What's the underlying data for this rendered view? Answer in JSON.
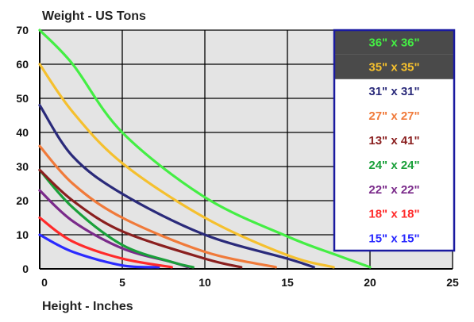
{
  "chart_data": {
    "type": "line",
    "title": "Weight - US Tons",
    "xlabel": "Height - Inches",
    "ylabel": "Weight - US Tons",
    "xlim": [
      0,
      25
    ],
    "ylim": [
      0,
      70
    ],
    "xticks": [
      "0",
      "5",
      "10",
      "15",
      "20",
      "25"
    ],
    "yticks": [
      "0",
      "10",
      "20",
      "30",
      "40",
      "50",
      "60",
      "70"
    ],
    "grid": true,
    "background": "#e4e4e4",
    "legend_position": "top-right",
    "series": [
      {
        "name": "36\" x 36\"",
        "color": "#44ee44",
        "legend_bg": "#4a4a4a",
        "points": [
          [
            0,
            70
          ],
          [
            2,
            60
          ],
          [
            5,
            40
          ],
          [
            10,
            21
          ],
          [
            15,
            9.5
          ],
          [
            18,
            4
          ],
          [
            20,
            0.5
          ]
        ]
      },
      {
        "name": "35\" x 35\"",
        "color": "#f5c02e",
        "legend_bg": "#4a4a4a",
        "points": [
          [
            0,
            60
          ],
          [
            2,
            46
          ],
          [
            5,
            31
          ],
          [
            10,
            15
          ],
          [
            15,
            4
          ],
          [
            17.8,
            0.5
          ]
        ]
      },
      {
        "name": "31\" x 31\"",
        "color": "#2a2a7a",
        "legend_bg": "#ffffff",
        "points": [
          [
            0,
            48
          ],
          [
            2,
            33
          ],
          [
            5,
            22
          ],
          [
            10,
            10
          ],
          [
            15,
            3
          ],
          [
            16.6,
            0.5
          ]
        ]
      },
      {
        "name": "27\" x 27\"",
        "color": "#f07a3a",
        "legend_bg": "#ffffff",
        "points": [
          [
            0,
            36
          ],
          [
            2,
            25
          ],
          [
            5,
            15
          ],
          [
            10,
            5
          ],
          [
            14.3,
            0.5
          ]
        ]
      },
      {
        "name": "13\" x 41\"",
        "color": "#8a1f1f",
        "legend_bg": "#ffffff",
        "points": [
          [
            0,
            29
          ],
          [
            2,
            20
          ],
          [
            5,
            11
          ],
          [
            10,
            3
          ],
          [
            12.2,
            0.5
          ]
        ]
      },
      {
        "name": "24\" x 24\"",
        "color": "#1aa03a",
        "legend_bg": "#ffffff",
        "points": [
          [
            0,
            29
          ],
          [
            2,
            18
          ],
          [
            5,
            7
          ],
          [
            8,
            2
          ],
          [
            9.3,
            0.5
          ]
        ]
      },
      {
        "name": "22\" x 22\"",
        "color": "#7a2a8a",
        "legend_bg": "#ffffff",
        "points": [
          [
            0,
            23
          ],
          [
            2,
            14
          ],
          [
            5,
            6
          ],
          [
            8,
            2
          ],
          [
            9,
            0.5
          ]
        ]
      },
      {
        "name": "18\" x 18\"",
        "color": "#ff2a2a",
        "legend_bg": "#ffffff",
        "points": [
          [
            0,
            15
          ],
          [
            2,
            8
          ],
          [
            5,
            3
          ],
          [
            8,
            0.5
          ]
        ]
      },
      {
        "name": "15\" x 15\"",
        "color": "#2a2aff",
        "legend_bg": "#ffffff",
        "points": [
          [
            0,
            10
          ],
          [
            2,
            5
          ],
          [
            5,
            1
          ],
          [
            7.2,
            0.5
          ]
        ]
      }
    ]
  }
}
